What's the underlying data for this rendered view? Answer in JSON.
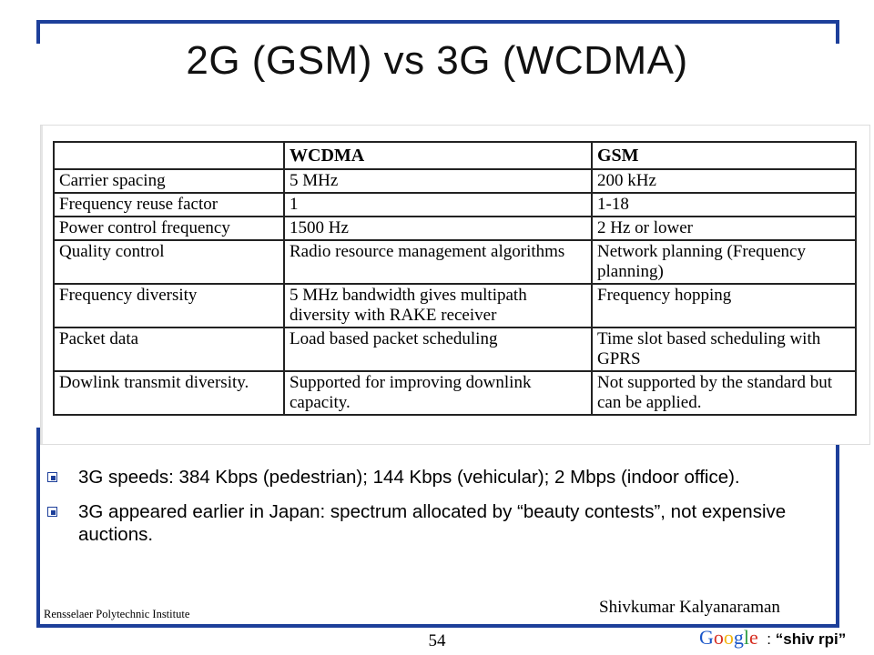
{
  "slide": {
    "title": "2G (GSM) vs 3G (WCDMA)",
    "table": {
      "headers": [
        "",
        "WCDMA",
        "GSM"
      ],
      "rows": [
        [
          "Carrier spacing",
          "5 MHz",
          "200 kHz"
        ],
        [
          "Frequency reuse factor",
          "1",
          "1-18"
        ],
        [
          "Power control frequency",
          "1500 Hz",
          "2 Hz or lower"
        ],
        [
          "Quality control",
          "Radio resource management algorithms",
          "Network planning (Frequency planning)"
        ],
        [
          "Frequency diversity",
          "5 MHz bandwidth gives multipath diversity with RAKE receiver",
          "Frequency hopping"
        ],
        [
          "Packet data",
          "Load based packet scheduling",
          "Time slot based scheduling with GPRS"
        ],
        [
          "Dowlink transmit diversity.",
          "Supported for improving downlink capacity.",
          "Not supported by the standard but can be applied."
        ]
      ]
    },
    "bullets": [
      "3G speeds: 384 Kbps (pedestrian); 144 Kbps (vehicular); 2 Mbps (indoor office).",
      "3G appeared earlier in Japan: spectrum allocated by “beauty contests”, not expensive auctions."
    ],
    "author": "Shivkumar Kalyanaraman",
    "institute": "Rensselaer Polytechnic Institute",
    "page_number": "54",
    "footer_search": {
      "logo_text": "Google",
      "separator": ":",
      "query": "“shiv rpi”"
    }
  },
  "colors": {
    "frame": "#1d3f9a",
    "google_letters": [
      "#1a56c8",
      "#d62d20",
      "#f2b50f",
      "#1a56c8",
      "#2f9e44",
      "#d62d20"
    ]
  }
}
